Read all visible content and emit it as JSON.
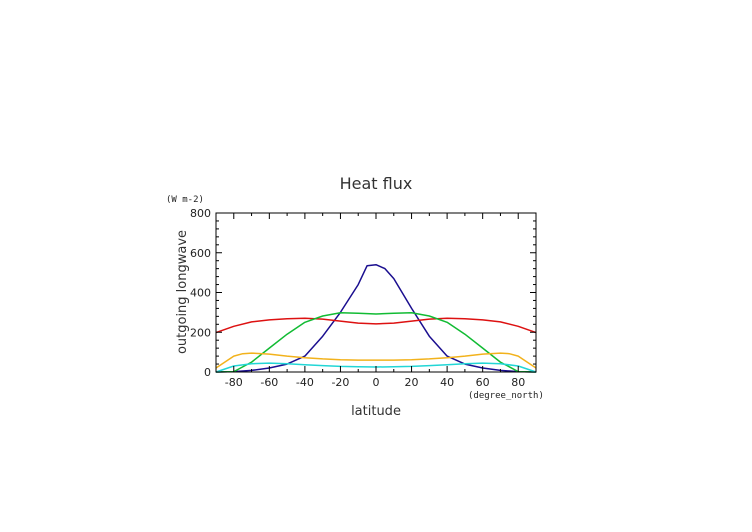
{
  "chart_data": {
    "type": "line",
    "title": "Heat flux",
    "xlabel": "latitude",
    "ylabel": "outgoing longwave",
    "x_unit": "(degree_north)",
    "y_unit": "(W m-2)",
    "xlim": [
      -90,
      90
    ],
    "ylim": [
      0,
      800
    ],
    "x_ticks": [
      -80,
      -60,
      -40,
      -20,
      0,
      20,
      40,
      60,
      80
    ],
    "y_ticks": [
      0,
      200,
      400,
      600,
      800
    ],
    "grid": false,
    "series": [
      {
        "color": "#1a0e8f",
        "x": [
          -90,
          -80,
          -70,
          -60,
          -50,
          -40,
          -30,
          -20,
          -10,
          -5,
          0,
          5,
          10,
          20,
          30,
          40,
          50,
          60,
          70,
          80,
          90
        ],
        "y": [
          0,
          2,
          8,
          20,
          40,
          80,
          180,
          300,
          440,
          535,
          540,
          520,
          470,
          320,
          180,
          80,
          40,
          20,
          8,
          2,
          0
        ]
      },
      {
        "color": "#dd1111",
        "x": [
          -90,
          -80,
          -70,
          -60,
          -50,
          -40,
          -30,
          -20,
          -10,
          0,
          10,
          20,
          30,
          40,
          50,
          60,
          70,
          80,
          90
        ],
        "y": [
          198,
          230,
          252,
          262,
          268,
          270,
          266,
          256,
          246,
          242,
          246,
          256,
          266,
          270,
          268,
          262,
          252,
          230,
          198
        ]
      },
      {
        "color": "#11bb33",
        "x": [
          -90,
          -80,
          -70,
          -60,
          -50,
          -40,
          -30,
          -20,
          -10,
          0,
          10,
          20,
          30,
          40,
          50,
          60,
          70,
          80,
          90
        ],
        "y": [
          0,
          2,
          50,
          120,
          190,
          250,
          282,
          298,
          296,
          292,
          296,
          298,
          282,
          250,
          190,
          120,
          50,
          2,
          0
        ]
      },
      {
        "color": "#f2b21c",
        "x": [
          -90,
          -80,
          -75,
          -70,
          -60,
          -50,
          -40,
          -30,
          -20,
          -10,
          0,
          10,
          20,
          30,
          40,
          50,
          60,
          70,
          75,
          80,
          90
        ],
        "y": [
          20,
          80,
          92,
          95,
          90,
          80,
          72,
          66,
          62,
          60,
          60,
          60,
          62,
          66,
          72,
          80,
          90,
          95,
          92,
          80,
          20
        ]
      },
      {
        "color": "#22d6d6",
        "x": [
          -90,
          -80,
          -70,
          -60,
          -50,
          -40,
          -30,
          -20,
          -10,
          0,
          10,
          20,
          30,
          40,
          50,
          60,
          70,
          80,
          90
        ],
        "y": [
          0,
          30,
          42,
          45,
          42,
          36,
          32,
          28,
          26,
          25,
          26,
          28,
          32,
          36,
          42,
          45,
          42,
          30,
          0
        ]
      }
    ]
  }
}
